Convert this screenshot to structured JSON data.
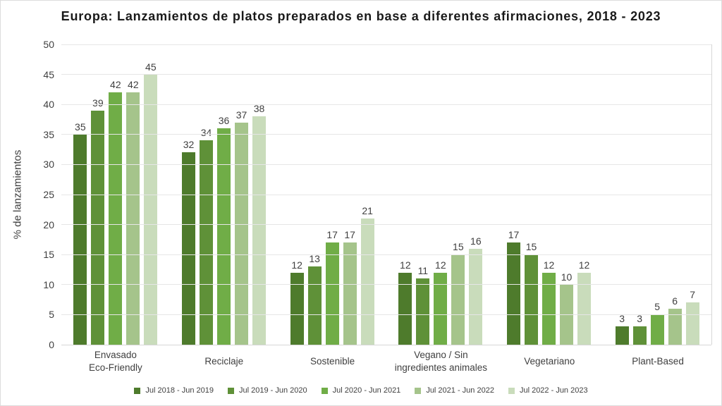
{
  "title": "Europa: Lanzamientos de platos preparados en base a diferentes afirmaciones, 2018 - 2023",
  "chart_data": {
    "type": "bar",
    "title": "Europa: Lanzamientos de platos preparados en base a diferentes afirmaciones, 2018 - 2023",
    "xlabel": "",
    "ylabel": "% de lanzamientos",
    "ylim": [
      0,
      50
    ],
    "ytick_step": 5,
    "yticks": [
      0,
      5,
      10,
      15,
      20,
      25,
      30,
      35,
      40,
      45,
      50
    ],
    "grid": true,
    "legend_position": "bottom",
    "bar_value_labels": true,
    "categories": [
      "Envasado\nEco-Friendly",
      "Reciclaje",
      "Sostenible",
      "Vegano / Sin\ningredientes animales",
      "Vegetariano",
      "Plant-Based"
    ],
    "series": [
      {
        "name": "Jul 2018 - Jun 2019",
        "color": "#4e7b2c",
        "values": [
          35,
          32,
          12,
          12,
          17,
          3
        ]
      },
      {
        "name": "Jul 2019 - Jun 2020",
        "color": "#5f9138",
        "values": [
          39,
          34,
          13,
          11,
          15,
          3
        ]
      },
      {
        "name": "Jul 2020 - Jun 2021",
        "color": "#70ad47",
        "values": [
          42,
          36,
          17,
          12,
          12,
          5
        ]
      },
      {
        "name": "Jul 2021 - Jun 2022",
        "color": "#a5c48b",
        "values": [
          42,
          37,
          17,
          15,
          10,
          6
        ]
      },
      {
        "name": "Jul 2022 - Jun 2023",
        "color": "#c9dcbb",
        "values": [
          45,
          38,
          21,
          16,
          12,
          7
        ]
      }
    ]
  }
}
